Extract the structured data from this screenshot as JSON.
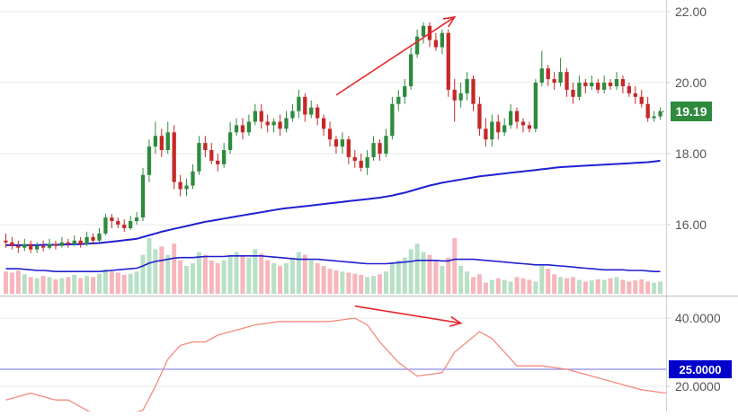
{
  "colors": {
    "up": "#2e8b3e",
    "down": "#c62828",
    "vol_up": "#b7e0c6",
    "vol_down": "#f6b6bb",
    "ma": "#2020d0",
    "adx": "#f48a7e",
    "threshold": "#8a8af0",
    "arrow": "#e8282c",
    "grid": "#e9e9e9",
    "axis": "#d0d0d0",
    "text": "#555555",
    "last_badge": "#2e8b3e",
    "threshold_badge": "#0000cc"
  },
  "chart_data": [
    {
      "type": "candlestick",
      "title": "",
      "y_axis": {
        "side": "right",
        "ylim": [
          14.2,
          22.2
        ],
        "ticks": [
          "22.00",
          "20.00",
          "18.00",
          "16.00"
        ],
        "tick_values": [
          22,
          20,
          18,
          16
        ]
      },
      "last_price": {
        "value": 19.19,
        "label": "19.19"
      },
      "candles": [
        [
          15.55,
          15.5,
          15.75,
          15.35
        ],
        [
          15.5,
          15.4,
          15.65,
          15.3
        ],
        [
          15.4,
          15.35,
          15.55,
          15.2
        ],
        [
          15.35,
          15.45,
          15.6,
          15.25
        ],
        [
          15.45,
          15.3,
          15.55,
          15.2
        ],
        [
          15.3,
          15.4,
          15.5,
          15.2
        ],
        [
          15.4,
          15.35,
          15.55,
          15.25
        ],
        [
          15.35,
          15.45,
          15.6,
          15.3
        ],
        [
          15.45,
          15.4,
          15.55,
          15.3
        ],
        [
          15.4,
          15.5,
          15.65,
          15.35
        ],
        [
          15.5,
          15.45,
          15.6,
          15.35
        ],
        [
          15.45,
          15.55,
          15.7,
          15.4
        ],
        [
          15.55,
          15.45,
          15.65,
          15.35
        ],
        [
          15.45,
          15.65,
          15.8,
          15.4
        ],
        [
          15.65,
          15.55,
          15.75,
          15.45
        ],
        [
          15.55,
          15.75,
          15.9,
          15.5
        ],
        [
          15.75,
          16.2,
          16.3,
          15.7
        ],
        [
          16.2,
          16.1,
          16.3,
          15.9
        ],
        [
          16.1,
          16.0,
          16.2,
          15.9
        ],
        [
          16.0,
          15.9,
          16.15,
          15.8
        ],
        [
          15.9,
          16.1,
          16.25,
          15.85
        ],
        [
          16.1,
          16.2,
          16.35,
          16.0
        ],
        [
          16.2,
          17.4,
          17.6,
          16.1
        ],
        [
          17.4,
          18.2,
          18.4,
          17.2
        ],
        [
          18.2,
          18.5,
          18.9,
          18.0
        ],
        [
          18.5,
          18.1,
          18.7,
          17.9
        ],
        [
          18.1,
          18.6,
          18.9,
          18.0
        ],
        [
          18.6,
          17.2,
          18.8,
          17.0
        ],
        [
          17.2,
          17.0,
          17.4,
          16.8
        ],
        [
          17.0,
          17.1,
          17.3,
          16.8
        ],
        [
          17.1,
          17.5,
          17.7,
          17.0
        ],
        [
          17.5,
          18.3,
          18.5,
          17.4
        ],
        [
          18.3,
          18.1,
          18.5,
          17.9
        ],
        [
          18.1,
          17.8,
          18.3,
          17.7
        ],
        [
          17.8,
          17.7,
          18.0,
          17.5
        ],
        [
          17.7,
          18.1,
          18.3,
          17.6
        ],
        [
          18.1,
          18.6,
          18.9,
          18.0
        ],
        [
          18.6,
          18.8,
          19.0,
          18.5
        ],
        [
          18.8,
          18.6,
          19.0,
          18.4
        ],
        [
          18.6,
          18.9,
          19.1,
          18.5
        ],
        [
          18.9,
          19.2,
          19.4,
          18.8
        ],
        [
          19.2,
          18.9,
          19.4,
          18.7
        ],
        [
          18.9,
          18.8,
          19.1,
          18.6
        ],
        [
          18.8,
          18.9,
          19.0,
          18.6
        ],
        [
          18.9,
          18.7,
          19.1,
          18.5
        ],
        [
          18.7,
          19.0,
          19.2,
          18.6
        ],
        [
          19.0,
          19.2,
          19.4,
          18.9
        ],
        [
          19.2,
          19.6,
          19.8,
          19.0
        ],
        [
          19.6,
          19.1,
          19.7,
          18.9
        ],
        [
          19.1,
          19.3,
          19.5,
          19.0
        ],
        [
          19.3,
          19.0,
          19.4,
          18.8
        ],
        [
          19.0,
          18.7,
          19.1,
          18.5
        ],
        [
          18.7,
          18.4,
          18.9,
          18.2
        ],
        [
          18.4,
          18.2,
          18.5,
          18.0
        ],
        [
          18.2,
          18.4,
          18.6,
          18.0
        ],
        [
          18.4,
          17.9,
          18.5,
          17.7
        ],
        [
          17.9,
          17.8,
          18.1,
          17.6
        ],
        [
          17.8,
          17.6,
          18.0,
          17.5
        ],
        [
          17.6,
          17.9,
          18.1,
          17.4
        ],
        [
          17.9,
          18.3,
          18.5,
          17.8
        ],
        [
          18.3,
          18.0,
          18.4,
          17.8
        ],
        [
          18.0,
          18.5,
          18.7,
          17.9
        ],
        [
          18.5,
          19.4,
          19.6,
          18.4
        ],
        [
          19.4,
          19.6,
          19.8,
          19.2
        ],
        [
          19.6,
          19.9,
          20.1,
          19.4
        ],
        [
          19.9,
          20.8,
          21.0,
          19.8
        ],
        [
          20.8,
          21.3,
          21.5,
          20.7
        ],
        [
          21.3,
          21.6,
          21.7,
          21.1
        ],
        [
          21.6,
          21.2,
          21.7,
          21.0
        ],
        [
          21.2,
          21.0,
          21.4,
          20.9
        ],
        [
          21.0,
          21.4,
          21.5,
          20.8
        ],
        [
          21.4,
          19.8,
          21.5,
          19.6
        ],
        [
          19.8,
          19.5,
          20.1,
          18.9
        ],
        [
          19.5,
          19.7,
          20.0,
          19.3
        ],
        [
          19.7,
          20.1,
          20.3,
          19.5
        ],
        [
          20.1,
          19.4,
          20.2,
          19.2
        ],
        [
          19.4,
          18.7,
          19.6,
          18.5
        ],
        [
          18.7,
          18.4,
          19.0,
          18.2
        ],
        [
          18.4,
          18.9,
          19.1,
          18.2
        ],
        [
          18.9,
          18.6,
          19.1,
          18.4
        ],
        [
          18.6,
          18.8,
          19.0,
          18.5
        ],
        [
          18.8,
          19.2,
          19.4,
          18.7
        ],
        [
          19.2,
          18.9,
          19.3,
          18.7
        ],
        [
          18.9,
          18.8,
          19.0,
          18.6
        ],
        [
          18.8,
          18.7,
          18.9,
          18.6
        ],
        [
          18.7,
          20.0,
          20.1,
          18.6
        ],
        [
          20.0,
          20.4,
          20.9,
          19.9
        ],
        [
          20.4,
          20.1,
          20.5,
          19.9
        ],
        [
          20.1,
          20.0,
          20.3,
          19.8
        ],
        [
          20.0,
          20.3,
          20.7,
          19.9
        ],
        [
          20.3,
          19.8,
          20.4,
          19.6
        ],
        [
          19.8,
          19.6,
          20.0,
          19.4
        ],
        [
          19.6,
          20.0,
          20.2,
          19.5
        ],
        [
          20.0,
          19.9,
          20.1,
          19.7
        ],
        [
          19.9,
          20.0,
          20.2,
          19.8
        ],
        [
          20.0,
          19.8,
          20.1,
          19.7
        ],
        [
          19.8,
          20.0,
          20.2,
          19.7
        ],
        [
          20.0,
          19.9,
          20.1,
          19.8
        ],
        [
          19.9,
          20.1,
          20.3,
          19.8
        ],
        [
          20.1,
          19.9,
          20.2,
          19.7
        ],
        [
          19.9,
          19.7,
          20.0,
          19.6
        ],
        [
          19.7,
          19.6,
          19.9,
          19.4
        ],
        [
          19.6,
          19.4,
          19.8,
          19.3
        ],
        [
          19.4,
          19.0,
          19.6,
          18.9
        ],
        [
          19.0,
          19.05,
          19.2,
          18.9
        ],
        [
          19.05,
          19.19,
          19.3,
          18.95
        ]
      ],
      "moving_average": [
        15.42,
        15.42,
        15.42,
        15.42,
        15.42,
        15.42,
        15.43,
        15.43,
        15.43,
        15.44,
        15.44,
        15.45,
        15.45,
        15.46,
        15.47,
        15.48,
        15.5,
        15.52,
        15.54,
        15.56,
        15.58,
        15.6,
        15.65,
        15.7,
        15.75,
        15.8,
        15.84,
        15.88,
        15.92,
        15.96,
        16.0,
        16.04,
        16.08,
        16.11,
        16.14,
        16.17,
        16.2,
        16.23,
        16.26,
        16.29,
        16.32,
        16.35,
        16.38,
        16.41,
        16.44,
        16.46,
        16.48,
        16.5,
        16.52,
        16.54,
        16.56,
        16.58,
        16.6,
        16.62,
        16.64,
        16.66,
        16.68,
        16.7,
        16.72,
        16.74,
        16.76,
        16.79,
        16.82,
        16.86,
        16.9,
        16.95,
        17.0,
        17.05,
        17.1,
        17.14,
        17.18,
        17.21,
        17.24,
        17.27,
        17.3,
        17.33,
        17.36,
        17.38,
        17.4,
        17.42,
        17.44,
        17.46,
        17.48,
        17.5,
        17.52,
        17.54,
        17.56,
        17.58,
        17.6,
        17.62,
        17.63,
        17.64,
        17.65,
        17.66,
        17.67,
        17.68,
        17.69,
        17.7,
        17.71,
        17.72,
        17.73,
        17.74,
        17.75,
        17.76,
        17.78,
        17.8
      ],
      "volume": {
        "values": [
          40,
          38,
          42,
          35,
          30,
          28,
          32,
          30,
          26,
          28,
          30,
          34,
          28,
          32,
          30,
          36,
          44,
          40,
          38,
          34,
          36,
          40,
          70,
          100,
          80,
          85,
          70,
          90,
          60,
          50,
          55,
          75,
          70,
          60,
          55,
          60,
          70,
          75,
          68,
          65,
          80,
          72,
          60,
          55,
          50,
          55,
          65,
          75,
          70,
          60,
          55,
          50,
          45,
          42,
          40,
          38,
          36,
          34,
          30,
          32,
          35,
          40,
          55,
          60,
          65,
          80,
          90,
          75,
          70,
          60,
          50,
          65,
          100,
          50,
          40,
          30,
          35,
          20,
          25,
          28,
          25,
          22,
          30,
          28,
          25,
          22,
          50,
          45,
          35,
          30,
          28,
          30,
          25,
          22,
          24,
          26,
          25,
          28,
          30,
          25,
          22,
          24,
          26,
          22,
          20,
          22
        ],
        "ma": [
          45,
          45,
          45,
          44,
          43,
          42,
          42,
          41,
          40,
          40,
          40,
          40,
          40,
          40,
          40,
          40,
          41,
          42,
          43,
          44,
          45,
          46,
          50,
          55,
          58,
          60,
          62,
          64,
          65,
          65,
          65,
          66,
          67,
          67,
          67,
          67,
          68,
          68,
          68,
          68,
          68,
          68,
          67,
          66,
          65,
          64,
          63,
          62,
          62,
          62,
          62,
          61,
          60,
          59,
          58,
          57,
          56,
          55,
          54,
          54,
          54,
          54,
          55,
          56,
          57,
          58,
          60,
          60,
          60,
          60,
          59,
          59,
          62,
          62,
          62,
          62,
          61,
          60,
          59,
          58,
          57,
          56,
          55,
          54,
          53,
          52,
          52,
          52,
          51,
          50,
          49,
          48,
          47,
          46,
          45,
          44,
          43,
          43,
          43,
          43,
          42,
          42,
          42,
          41,
          40,
          40
        ]
      },
      "annotations": [
        {
          "type": "arrow",
          "from": [
            53,
            19.65
          ],
          "to": [
            72,
            21.85
          ]
        }
      ]
    },
    {
      "type": "line",
      "title": "",
      "y_axis": {
        "side": "right",
        "ylim": [
          12,
          46
        ],
        "ticks": [
          "40.0000",
          "20.0000"
        ],
        "tick_values": [
          40,
          20
        ]
      },
      "threshold": {
        "value": 25,
        "label": "25.0000"
      },
      "x": [
        0,
        4,
        8,
        10,
        12,
        14,
        16,
        18,
        20,
        22,
        24,
        26,
        28,
        30,
        32,
        34,
        36,
        40,
        44,
        48,
        52,
        56,
        58,
        60,
        63,
        66,
        70,
        72,
        74,
        76,
        78,
        82,
        86,
        90,
        94,
        98,
        102,
        106
      ],
      "values": [
        16,
        18,
        16,
        16,
        14,
        12,
        12,
        12,
        12,
        13,
        20,
        28,
        32,
        33,
        33,
        35,
        36,
        38,
        39,
        39,
        39,
        40,
        38,
        33,
        27,
        23,
        24,
        30,
        33,
        36,
        34,
        26,
        26,
        25,
        23,
        21,
        19,
        18
      ],
      "annotations": [
        {
          "type": "arrow",
          "from": [
            56,
            43.5
          ],
          "to": [
            73,
            38.5
          ]
        }
      ]
    }
  ]
}
